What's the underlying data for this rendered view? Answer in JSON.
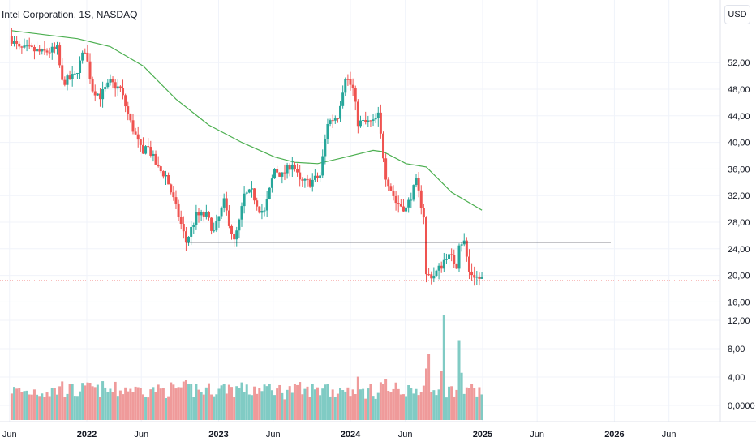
{
  "header": {
    "symbol_title": "Intel Corporation, 1S, NASDAQ"
  },
  "scale": {
    "currency": "USD"
  },
  "colors": {
    "up": "#26a69a",
    "down": "#ef5350",
    "vol_up": "#80cbc4",
    "vol_down": "#ef9a9a",
    "ma": "#4caf50",
    "last_price_line": "#ef5350",
    "grid": "#f0f3fa",
    "support_line": "#131722"
  },
  "chart_data": {
    "type": "candlestick",
    "title": "Intel Corporation, 1S, NASDAQ",
    "price_axis": {
      "ylim": [
        13.6,
        56.6
      ],
      "ticks": [
        16,
        20,
        24,
        28,
        32,
        36,
        40,
        44,
        48,
        52
      ],
      "tick_labels": [
        "16,00",
        "20,00",
        "24,00",
        "28,00",
        "32,00",
        "36,00",
        "40,00",
        "44,00",
        "48,00",
        "52,00"
      ]
    },
    "volume_axis": {
      "ticks": [
        0,
        4,
        8,
        12
      ],
      "tick_labels": [
        "0,0000",
        "4,00",
        "8,00",
        "12,00"
      ]
    },
    "time_axis": {
      "labels": [
        "Jun",
        "2022",
        "Jun",
        "2023",
        "Jun",
        "2024",
        "Jun",
        "2025",
        "Jun",
        "2026",
        "Jun"
      ],
      "bold": [
        false,
        true,
        false,
        true,
        false,
        true,
        false,
        true,
        false,
        true,
        false
      ]
    },
    "price_anchors": [
      [
        "2021-06-07",
        56
      ],
      [
        "2021-07-05",
        54
      ],
      [
        "2021-08-02",
        54
      ],
      [
        "2021-09-06",
        53.5
      ],
      [
        "2021-10-18",
        54
      ],
      [
        "2021-11-01",
        49
      ],
      [
        "2021-12-06",
        50
      ],
      [
        "2022-01-03",
        54
      ],
      [
        "2022-01-24",
        48
      ],
      [
        "2022-02-14",
        47
      ],
      [
        "2022-03-14",
        49
      ],
      [
        "2022-04-11",
        48
      ],
      [
        "2022-05-09",
        43
      ],
      [
        "2022-06-13",
        38
      ],
      [
        "2022-06-20",
        40
      ],
      [
        "2022-07-25",
        36
      ],
      [
        "2022-08-15",
        35
      ],
      [
        "2022-09-19",
        29
      ],
      [
        "2022-10-10",
        25
      ],
      [
        "2022-11-07",
        29
      ],
      [
        "2022-12-05",
        29
      ],
      [
        "2022-12-26",
        26.5
      ],
      [
        "2023-01-23",
        31
      ],
      [
        "2023-02-06",
        28
      ],
      [
        "2023-02-20",
        25
      ],
      [
        "2023-03-06",
        28
      ],
      [
        "2023-03-20",
        32
      ],
      [
        "2023-04-10",
        32.5
      ],
      [
        "2023-05-01",
        30
      ],
      [
        "2023-05-15",
        29.5
      ],
      [
        "2023-06-12",
        36
      ],
      [
        "2023-07-03",
        35
      ],
      [
        "2023-07-31",
        37
      ],
      [
        "2023-08-21",
        34
      ],
      [
        "2023-09-18",
        34
      ],
      [
        "2023-10-16",
        35
      ],
      [
        "2023-11-06",
        43
      ],
      [
        "2023-12-04",
        44
      ],
      [
        "2023-12-25",
        50
      ],
      [
        "2024-01-15",
        48
      ],
      [
        "2024-01-29",
        43
      ],
      [
        "2024-02-19",
        43
      ],
      [
        "2024-03-11",
        43
      ],
      [
        "2024-03-25",
        44
      ],
      [
        "2024-04-15",
        35
      ],
      [
        "2024-05-13",
        31
      ],
      [
        "2024-06-10",
        30
      ],
      [
        "2024-07-08",
        34
      ],
      [
        "2024-07-29",
        29
      ],
      [
        "2024-08-05",
        20
      ],
      [
        "2024-08-26",
        20
      ],
      [
        "2024-09-16",
        21.5
      ],
      [
        "2024-09-30",
        23
      ],
      [
        "2024-10-14",
        22.5
      ],
      [
        "2024-10-28",
        21.5
      ],
      [
        "2024-11-04",
        25
      ],
      [
        "2024-11-18",
        25
      ],
      [
        "2024-12-02",
        20.5
      ],
      [
        "2024-12-30",
        19.5
      ]
    ],
    "candle_range": {
      "start": "2021-06-07",
      "end": "2024-12-30",
      "interval_days": 7
    },
    "moving_average": {
      "points": [
        [
          "2021-06-07",
          56.8
        ],
        [
          "2021-09-06",
          56.2
        ],
        [
          "2021-12-06",
          55.6
        ],
        [
          "2022-03-07",
          54.4
        ],
        [
          "2022-06-06",
          51.5
        ],
        [
          "2022-09-05",
          46.5
        ],
        [
          "2022-12-05",
          42.6
        ],
        [
          "2023-03-06",
          40.0
        ],
        [
          "2023-06-05",
          37.8
        ],
        [
          "2023-07-31",
          37.0
        ],
        [
          "2023-10-02",
          36.8
        ],
        [
          "2023-12-04",
          37.6
        ],
        [
          "2024-03-04",
          38.8
        ],
        [
          "2024-04-01",
          38.6
        ],
        [
          "2024-06-03",
          36.8
        ],
        [
          "2024-07-29",
          36.3
        ],
        [
          "2024-10-07",
          32.5
        ],
        [
          "2024-12-30",
          29.8
        ]
      ]
    },
    "support_line": {
      "value": 25,
      "from": "2022-10-03",
      "to": "2025-12-22"
    },
    "last_price": 19.2
  }
}
